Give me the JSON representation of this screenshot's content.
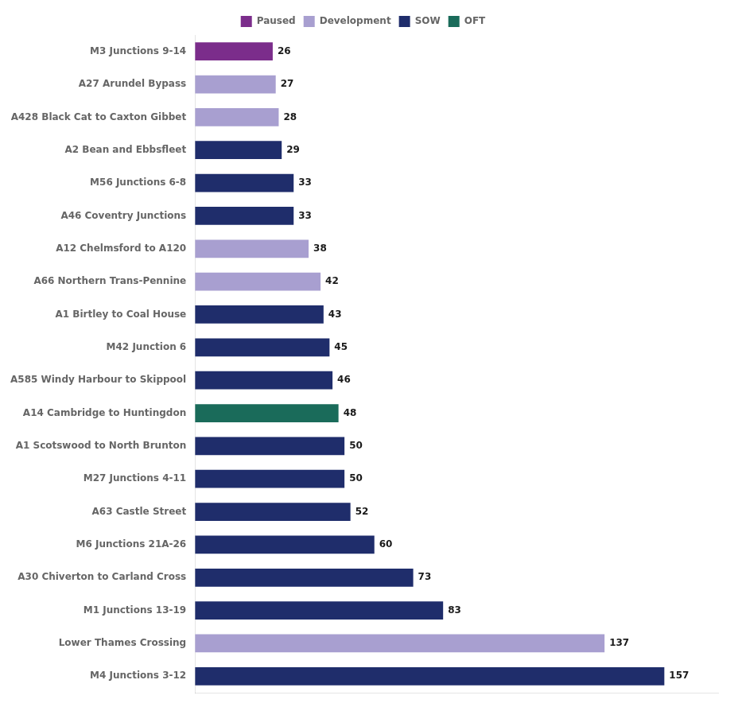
{
  "chart_data": {
    "type": "bar",
    "orientation": "horizontal",
    "categories": [
      "M3 Junctions 9-14",
      "A27 Arundel Bypass",
      "A428 Black Cat to Caxton Gibbet",
      "A2 Bean and Ebbsfleet",
      "M56 Junctions 6-8",
      "A46 Coventry Junctions",
      "A12 Chelmsford to A120",
      "A66 Northern Trans-Pennine",
      "A1 Birtley to Coal House",
      "M42 Junction 6",
      "A585 Windy Harbour to Skippool",
      "A14 Cambridge to Huntingdon",
      "A1 Scotswood to North Brunton",
      "M27 Junctions 4-11",
      "A63 Castle Street",
      "M6 Junctions 21A-26",
      "A30 Chiverton to Carland Cross",
      "M1 Junctions 13-19",
      "Lower Thames Crossing",
      "M4 Junctions 3-12"
    ],
    "series": [
      {
        "name": "Paused",
        "color": "#7B2D8B",
        "values": [
          26,
          null,
          null,
          null,
          null,
          null,
          null,
          null,
          null,
          null,
          null,
          null,
          null,
          null,
          null,
          null,
          null,
          null,
          null,
          null
        ]
      },
      {
        "name": "Development",
        "color": "#A89FD0",
        "values": [
          null,
          27,
          28,
          null,
          null,
          null,
          38,
          42,
          null,
          null,
          null,
          null,
          null,
          null,
          null,
          null,
          null,
          null,
          137,
          null
        ]
      },
      {
        "name": "SOW",
        "color": "#1F2D6B",
        "values": [
          null,
          null,
          null,
          29,
          33,
          33,
          null,
          null,
          43,
          45,
          46,
          null,
          50,
          50,
          52,
          60,
          73,
          83,
          null,
          157
        ]
      },
      {
        "name": "OFT",
        "color": "#1A6B5A",
        "values": [
          null,
          null,
          null,
          null,
          null,
          null,
          null,
          null,
          null,
          null,
          null,
          48,
          null,
          null,
          null,
          null,
          null,
          null,
          null,
          null
        ]
      }
    ],
    "xlim": [
      0,
      175
    ],
    "grid": false,
    "legend": "top",
    "data_labels": true,
    "tick_labels": "y"
  }
}
